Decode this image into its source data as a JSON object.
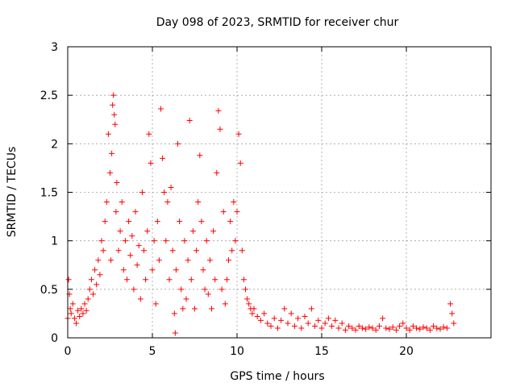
{
  "chart_data": {
    "type": "scatter",
    "title": "Day 098 of 2023, SRMTID for receiver chur",
    "xlabel": "GPS time / hours",
    "ylabel": "SRMTID / TECUs",
    "xlim": [
      0,
      25
    ],
    "ylim": [
      0,
      3
    ],
    "xticks": [
      0,
      5,
      10,
      15,
      20
    ],
    "xtick_labels": [
      "0",
      "5",
      "10",
      "15",
      "20"
    ],
    "yticks": [
      0,
      0.5,
      1,
      1.5,
      2,
      2.5,
      3
    ],
    "ytick_labels": [
      "0",
      "0.5",
      "1",
      "1.5",
      "2",
      "2.5",
      "3"
    ],
    "grid": true,
    "marker": "+",
    "color": "#ff0000",
    "series": [
      {
        "name": "SRMTID",
        "points": [
          [
            0.0,
            0.2
          ],
          [
            0.05,
            0.6
          ],
          [
            0.1,
            0.45
          ],
          [
            0.15,
            0.3
          ],
          [
            0.2,
            0.25
          ],
          [
            0.3,
            0.35
          ],
          [
            0.4,
            0.2
          ],
          [
            0.5,
            0.15
          ],
          [
            0.6,
            0.28
          ],
          [
            0.7,
            0.22
          ],
          [
            0.8,
            0.3
          ],
          [
            0.9,
            0.25
          ],
          [
            1.0,
            0.35
          ],
          [
            1.1,
            0.28
          ],
          [
            1.2,
            0.4
          ],
          [
            1.3,
            0.5
          ],
          [
            1.4,
            0.6
          ],
          [
            1.5,
            0.45
          ],
          [
            1.6,
            0.7
          ],
          [
            1.7,
            0.55
          ],
          [
            1.8,
            0.8
          ],
          [
            1.9,
            0.65
          ],
          [
            2.0,
            1.0
          ],
          [
            2.1,
            0.9
          ],
          [
            2.2,
            1.2
          ],
          [
            2.3,
            1.4
          ],
          [
            2.4,
            2.1
          ],
          [
            2.5,
            1.7
          ],
          [
            2.55,
            0.8
          ],
          [
            2.6,
            1.9
          ],
          [
            2.65,
            2.4
          ],
          [
            2.7,
            2.5
          ],
          [
            2.75,
            2.3
          ],
          [
            2.8,
            2.2
          ],
          [
            2.85,
            1.3
          ],
          [
            2.9,
            1.6
          ],
          [
            3.0,
            0.9
          ],
          [
            3.1,
            1.1
          ],
          [
            3.2,
            1.4
          ],
          [
            3.3,
            0.7
          ],
          [
            3.4,
            1.0
          ],
          [
            3.5,
            0.6
          ],
          [
            3.6,
            1.2
          ],
          [
            3.7,
            0.85
          ],
          [
            3.8,
            1.05
          ],
          [
            3.9,
            0.5
          ],
          [
            4.0,
            1.3
          ],
          [
            4.1,
            0.75
          ],
          [
            4.2,
            0.95
          ],
          [
            4.3,
            0.4
          ],
          [
            4.4,
            1.5
          ],
          [
            4.5,
            0.9
          ],
          [
            4.6,
            0.6
          ],
          [
            4.7,
            1.1
          ],
          [
            4.8,
            2.1
          ],
          [
            4.9,
            1.8
          ],
          [
            5.0,
            0.7
          ],
          [
            5.1,
            1.0
          ],
          [
            5.2,
            0.35
          ],
          [
            5.3,
            1.2
          ],
          [
            5.4,
            0.8
          ],
          [
            5.5,
            2.36
          ],
          [
            5.6,
            1.85
          ],
          [
            5.7,
            1.5
          ],
          [
            5.8,
            1.0
          ],
          [
            5.9,
            1.4
          ],
          [
            6.0,
            0.6
          ],
          [
            6.1,
            1.55
          ],
          [
            6.2,
            0.9
          ],
          [
            6.3,
            0.25
          ],
          [
            6.35,
            0.05
          ],
          [
            6.4,
            0.7
          ],
          [
            6.5,
            2.0
          ],
          [
            6.6,
            1.2
          ],
          [
            6.7,
            0.5
          ],
          [
            6.8,
            0.3
          ],
          [
            6.9,
            1.0
          ],
          [
            7.0,
            0.4
          ],
          [
            7.1,
            0.8
          ],
          [
            7.2,
            2.24
          ],
          [
            7.3,
            0.6
          ],
          [
            7.4,
            1.1
          ],
          [
            7.5,
            0.3
          ],
          [
            7.6,
            0.9
          ],
          [
            7.7,
            1.4
          ],
          [
            7.8,
            1.88
          ],
          [
            7.9,
            1.2
          ],
          [
            8.0,
            0.7
          ],
          [
            8.1,
            0.5
          ],
          [
            8.2,
            1.0
          ],
          [
            8.3,
            0.45
          ],
          [
            8.4,
            0.8
          ],
          [
            8.5,
            0.3
          ],
          [
            8.6,
            1.1
          ],
          [
            8.7,
            0.6
          ],
          [
            8.8,
            1.7
          ],
          [
            8.9,
            2.34
          ],
          [
            9.0,
            2.15
          ],
          [
            9.1,
            0.5
          ],
          [
            9.2,
            1.3
          ],
          [
            9.3,
            0.35
          ],
          [
            9.4,
            0.6
          ],
          [
            9.5,
            0.8
          ],
          [
            9.6,
            1.2
          ],
          [
            9.7,
            0.9
          ],
          [
            9.8,
            1.4
          ],
          [
            9.9,
            1.0
          ],
          [
            10.0,
            1.3
          ],
          [
            10.1,
            2.1
          ],
          [
            10.2,
            1.8
          ],
          [
            10.3,
            0.9
          ],
          [
            10.4,
            0.6
          ],
          [
            10.5,
            0.5
          ],
          [
            10.6,
            0.4
          ],
          [
            10.7,
            0.35
          ],
          [
            10.8,
            0.3
          ],
          [
            10.9,
            0.25
          ],
          [
            11.0,
            0.3
          ],
          [
            11.2,
            0.22
          ],
          [
            11.4,
            0.18
          ],
          [
            11.6,
            0.25
          ],
          [
            11.8,
            0.15
          ],
          [
            12.0,
            0.12
          ],
          [
            12.2,
            0.2
          ],
          [
            12.4,
            0.1
          ],
          [
            12.6,
            0.18
          ],
          [
            12.8,
            0.3
          ],
          [
            13.0,
            0.15
          ],
          [
            13.2,
            0.25
          ],
          [
            13.4,
            0.12
          ],
          [
            13.6,
            0.2
          ],
          [
            13.8,
            0.1
          ],
          [
            14.0,
            0.22
          ],
          [
            14.2,
            0.15
          ],
          [
            14.4,
            0.3
          ],
          [
            14.6,
            0.12
          ],
          [
            14.8,
            0.18
          ],
          [
            15.0,
            0.1
          ],
          [
            15.2,
            0.15
          ],
          [
            15.4,
            0.2
          ],
          [
            15.6,
            0.12
          ],
          [
            15.8,
            0.18
          ],
          [
            16.0,
            0.1
          ],
          [
            16.2,
            0.15
          ],
          [
            16.4,
            0.08
          ],
          [
            16.6,
            0.12
          ],
          [
            16.8,
            0.1
          ],
          [
            17.0,
            0.08
          ],
          [
            17.2,
            0.12
          ],
          [
            17.4,
            0.1
          ],
          [
            17.6,
            0.09
          ],
          [
            17.8,
            0.11
          ],
          [
            18.0,
            0.1
          ],
          [
            18.2,
            0.08
          ],
          [
            18.4,
            0.12
          ],
          [
            18.6,
            0.2
          ],
          [
            18.8,
            0.1
          ],
          [
            19.0,
            0.09
          ],
          [
            19.2,
            0.11
          ],
          [
            19.4,
            0.08
          ],
          [
            19.6,
            0.12
          ],
          [
            19.8,
            0.15
          ],
          [
            20.0,
            0.1
          ],
          [
            20.2,
            0.08
          ],
          [
            20.4,
            0.12
          ],
          [
            20.6,
            0.1
          ],
          [
            20.8,
            0.09
          ],
          [
            21.0,
            0.11
          ],
          [
            21.2,
            0.1
          ],
          [
            21.4,
            0.08
          ],
          [
            21.6,
            0.12
          ],
          [
            21.8,
            0.1
          ],
          [
            22.0,
            0.09
          ],
          [
            22.2,
            0.11
          ],
          [
            22.4,
            0.1
          ],
          [
            22.6,
            0.35
          ],
          [
            22.7,
            0.25
          ],
          [
            22.8,
            0.15
          ]
        ]
      }
    ]
  }
}
